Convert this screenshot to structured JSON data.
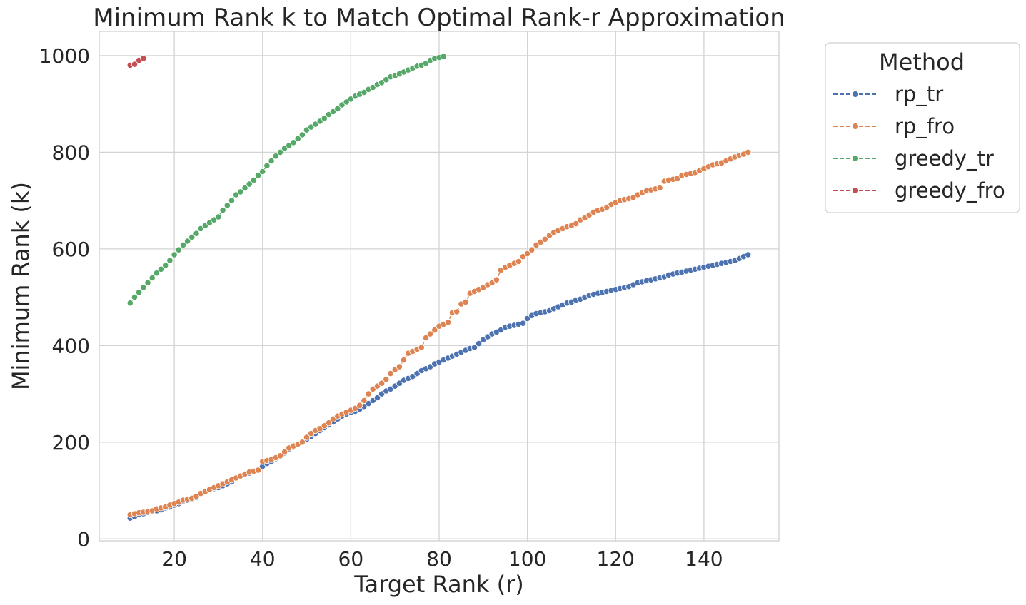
{
  "chart_data": {
    "type": "line",
    "title": "Minimum Rank k to Match Optimal Rank-r Approximation",
    "xlabel": "Target Rank (r)",
    "ylabel": "Minimum Rank (k)",
    "xlim": [
      3,
      157
    ],
    "ylim": [
      -4,
      1050
    ],
    "xticks": [
      20,
      40,
      60,
      80,
      100,
      120,
      140
    ],
    "yticks": [
      0,
      200,
      400,
      600,
      800,
      1000
    ],
    "grid": true,
    "legend": {
      "title": "Method",
      "placement": "outside-right-top"
    },
    "series": [
      {
        "name": "rp_tr",
        "color": "#4c72b0",
        "x": [
          10,
          11,
          12,
          13,
          14,
          15,
          16,
          17,
          18,
          19,
          20,
          21,
          22,
          23,
          24,
          25,
          26,
          27,
          28,
          29,
          30,
          31,
          32,
          33,
          34,
          35,
          36,
          37,
          38,
          39,
          40,
          41,
          42,
          43,
          44,
          45,
          46,
          47,
          48,
          49,
          50,
          51,
          52,
          53,
          54,
          55,
          56,
          57,
          58,
          59,
          60,
          61,
          62,
          63,
          64,
          65,
          66,
          67,
          68,
          69,
          70,
          71,
          72,
          73,
          74,
          75,
          76,
          77,
          78,
          79,
          80,
          81,
          82,
          83,
          84,
          85,
          86,
          87,
          88,
          89,
          90,
          91,
          92,
          93,
          94,
          95,
          96,
          97,
          98,
          99,
          100,
          101,
          102,
          103,
          104,
          105,
          106,
          107,
          108,
          109,
          110,
          111,
          112,
          113,
          114,
          115,
          116,
          117,
          118,
          119,
          120,
          121,
          122,
          123,
          124,
          125,
          126,
          127,
          128,
          129,
          130,
          131,
          132,
          133,
          134,
          135,
          136,
          137,
          138,
          139,
          140,
          141,
          142,
          143,
          144,
          145,
          146,
          147,
          148,
          149,
          150
        ],
        "y": [
          43,
          46,
          50,
          52,
          55,
          57,
          58,
          60,
          64,
          66,
          70,
          73,
          78,
          80,
          82,
          86,
          94,
          98,
          102,
          104,
          106,
          110,
          114,
          118,
          126,
          130,
          133,
          136,
          140,
          144,
          150,
          156,
          160,
          166,
          170,
          178,
          186,
          190,
          196,
          200,
          206,
          212,
          218,
          224,
          230,
          236,
          242,
          248,
          254,
          258,
          262,
          264,
          268,
          274,
          280,
          286,
          292,
          300,
          306,
          310,
          316,
          322,
          328,
          332,
          336,
          342,
          348,
          352,
          356,
          362,
          366,
          370,
          374,
          378,
          382,
          386,
          390,
          394,
          396,
          404,
          412,
          418,
          424,
          428,
          432,
          438,
          440,
          442,
          444,
          446,
          456,
          462,
          466,
          468,
          470,
          472,
          476,
          480,
          484,
          488,
          490,
          494,
          496,
          500,
          504,
          506,
          508,
          510,
          512,
          514,
          516,
          518,
          520,
          522,
          526,
          530,
          532,
          534,
          536,
          538,
          540,
          542,
          546,
          548,
          550,
          552,
          554,
          556,
          558,
          560,
          562,
          564,
          566,
          568,
          570,
          572,
          574,
          576,
          580,
          584,
          588
        ]
      },
      {
        "name": "rp_fro",
        "color": "#dd8452",
        "x": [
          10,
          11,
          12,
          13,
          14,
          15,
          16,
          17,
          18,
          19,
          20,
          21,
          22,
          23,
          24,
          25,
          26,
          27,
          28,
          29,
          30,
          31,
          32,
          33,
          34,
          35,
          36,
          37,
          38,
          39,
          40,
          41,
          42,
          43,
          44,
          45,
          46,
          47,
          48,
          49,
          50,
          51,
          52,
          53,
          54,
          55,
          56,
          57,
          58,
          59,
          60,
          61,
          62,
          63,
          64,
          65,
          66,
          67,
          68,
          69,
          70,
          71,
          72,
          73,
          74,
          75,
          76,
          77,
          78,
          79,
          80,
          81,
          82,
          83,
          84,
          85,
          86,
          87,
          88,
          89,
          90,
          91,
          92,
          93,
          94,
          95,
          96,
          97,
          98,
          99,
          100,
          101,
          102,
          103,
          104,
          105,
          106,
          107,
          108,
          109,
          110,
          111,
          112,
          113,
          114,
          115,
          116,
          117,
          118,
          119,
          120,
          121,
          122,
          123,
          124,
          125,
          126,
          127,
          128,
          129,
          130,
          131,
          132,
          133,
          134,
          135,
          136,
          137,
          138,
          139,
          140,
          141,
          142,
          143,
          144,
          145,
          146,
          147,
          148,
          149,
          150
        ],
        "y": [
          50,
          52,
          54,
          55,
          57,
          58,
          62,
          64,
          66,
          70,
          73,
          76,
          80,
          82,
          84,
          88,
          94,
          98,
          102,
          106,
          110,
          114,
          118,
          122,
          126,
          130,
          134,
          138,
          140,
          142,
          160,
          162,
          164,
          168,
          172,
          180,
          188,
          192,
          196,
          200,
          210,
          218,
          224,
          228,
          234,
          240,
          248,
          254,
          258,
          262,
          266,
          270,
          276,
          286,
          300,
          310,
          316,
          322,
          330,
          342,
          350,
          356,
          370,
          384,
          388,
          392,
          396,
          416,
          424,
          432,
          440,
          444,
          448,
          468,
          470,
          486,
          490,
          508,
          512,
          516,
          520,
          526,
          530,
          536,
          556,
          562,
          566,
          570,
          574,
          584,
          590,
          598,
          608,
          614,
          620,
          628,
          634,
          638,
          642,
          646,
          648,
          652,
          660,
          664,
          670,
          676,
          680,
          682,
          686,
          692,
          696,
          700,
          702,
          704,
          706,
          712,
          716,
          720,
          722,
          724,
          726,
          740,
          742,
          744,
          746,
          752,
          754,
          756,
          758,
          762,
          766,
          770,
          774,
          776,
          778,
          782,
          786,
          790,
          794,
          796,
          800
        ]
      },
      {
        "name": "greedy_tr",
        "color": "#55a868",
        "x": [
          10,
          11,
          12,
          13,
          14,
          15,
          16,
          17,
          18,
          19,
          20,
          21,
          22,
          23,
          24,
          25,
          26,
          27,
          28,
          29,
          30,
          31,
          32,
          33,
          34,
          35,
          36,
          37,
          38,
          39,
          40,
          41,
          42,
          43,
          44,
          45,
          46,
          47,
          48,
          49,
          50,
          51,
          52,
          53,
          54,
          55,
          56,
          57,
          58,
          59,
          60,
          61,
          62,
          63,
          64,
          65,
          66,
          67,
          68,
          69,
          70,
          71,
          72,
          73,
          74,
          75,
          76,
          77,
          78,
          79,
          80,
          81
        ],
        "y": [
          488,
          500,
          510,
          520,
          530,
          540,
          550,
          558,
          566,
          576,
          588,
          598,
          608,
          616,
          624,
          632,
          642,
          648,
          654,
          660,
          666,
          680,
          690,
          700,
          712,
          718,
          726,
          734,
          742,
          752,
          760,
          772,
          782,
          792,
          800,
          808,
          814,
          820,
          828,
          836,
          846,
          852,
          858,
          864,
          870,
          878,
          884,
          890,
          898,
          904,
          910,
          916,
          920,
          924,
          930,
          934,
          940,
          944,
          950,
          956,
          958,
          962,
          966,
          970,
          974,
          978,
          980,
          984,
          990,
          994,
          996,
          998
        ]
      },
      {
        "name": "greedy_fro",
        "color": "#c44e52",
        "x": [
          10,
          11,
          12,
          13
        ],
        "y": [
          980,
          982,
          990,
          994
        ]
      }
    ]
  }
}
